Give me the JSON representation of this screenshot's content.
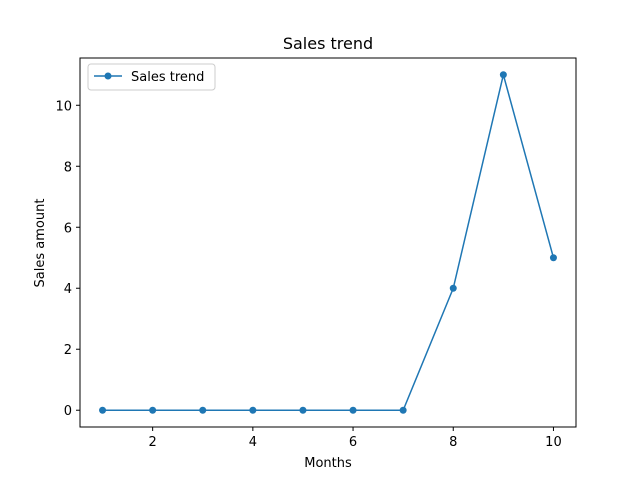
{
  "chart_data": {
    "type": "line",
    "title": "Sales trend",
    "xlabel": "Months",
    "ylabel": "Sales amount",
    "x": [
      1,
      2,
      3,
      4,
      5,
      6,
      7,
      8,
      9,
      10
    ],
    "series": [
      {
        "name": "Sales trend",
        "values": [
          0,
          0,
          0,
          0,
          0,
          0,
          0,
          4,
          11,
          5
        ],
        "color": "#1f77b4",
        "marker": "circle"
      }
    ],
    "xlim": [
      0.55,
      10.45
    ],
    "ylim": [
      -0.55,
      11.55
    ],
    "xticks": [
      2,
      4,
      6,
      8,
      10
    ],
    "yticks": [
      0,
      2,
      4,
      6,
      8,
      10
    ],
    "grid": false,
    "legend_position": "top-left"
  }
}
